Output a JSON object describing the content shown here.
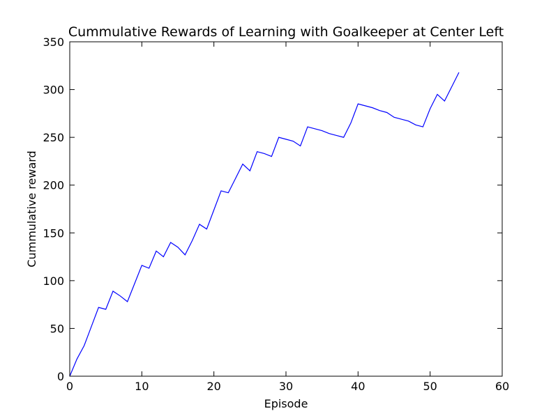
{
  "chart_data": {
    "type": "line",
    "title": "Cummulative Rewards of Learning with Goalkeeper at Center Left",
    "xlabel": "Episode",
    "ylabel": "Cummulative reward",
    "xlim": [
      0,
      60
    ],
    "ylim": [
      0,
      350
    ],
    "xticks": [
      "0",
      "10",
      "20",
      "30",
      "40",
      "50",
      "60"
    ],
    "yticks": [
      "0",
      "50",
      "100",
      "150",
      "200",
      "250",
      "300",
      "350"
    ],
    "grid": false,
    "line_color": "#0000ff",
    "series": [
      {
        "x": [
          0,
          1,
          2,
          3,
          4,
          5,
          6,
          7,
          8,
          9,
          10,
          11,
          12,
          13,
          14,
          15,
          16,
          17,
          18,
          19,
          20,
          21,
          22,
          23,
          24,
          25,
          26,
          27,
          28,
          29,
          30,
          31,
          32,
          33,
          34,
          35,
          36,
          37,
          38,
          39,
          40,
          41,
          42,
          43,
          44,
          45,
          46,
          47,
          48,
          49,
          50,
          51,
          52,
          53,
          54
        ],
        "values": [
          0,
          18,
          32,
          52,
          72,
          70,
          89,
          84,
          78,
          97,
          116,
          113,
          131,
          125,
          140,
          135,
          127,
          142,
          159,
          154,
          174,
          194,
          192,
          207,
          222,
          215,
          235,
          233,
          230,
          250,
          248,
          246,
          241,
          261,
          259,
          257,
          254,
          252,
          250,
          265,
          285,
          283,
          281,
          278,
          276,
          271,
          269,
          267,
          263,
          261,
          280,
          295,
          288,
          303,
          318
        ]
      }
    ]
  }
}
